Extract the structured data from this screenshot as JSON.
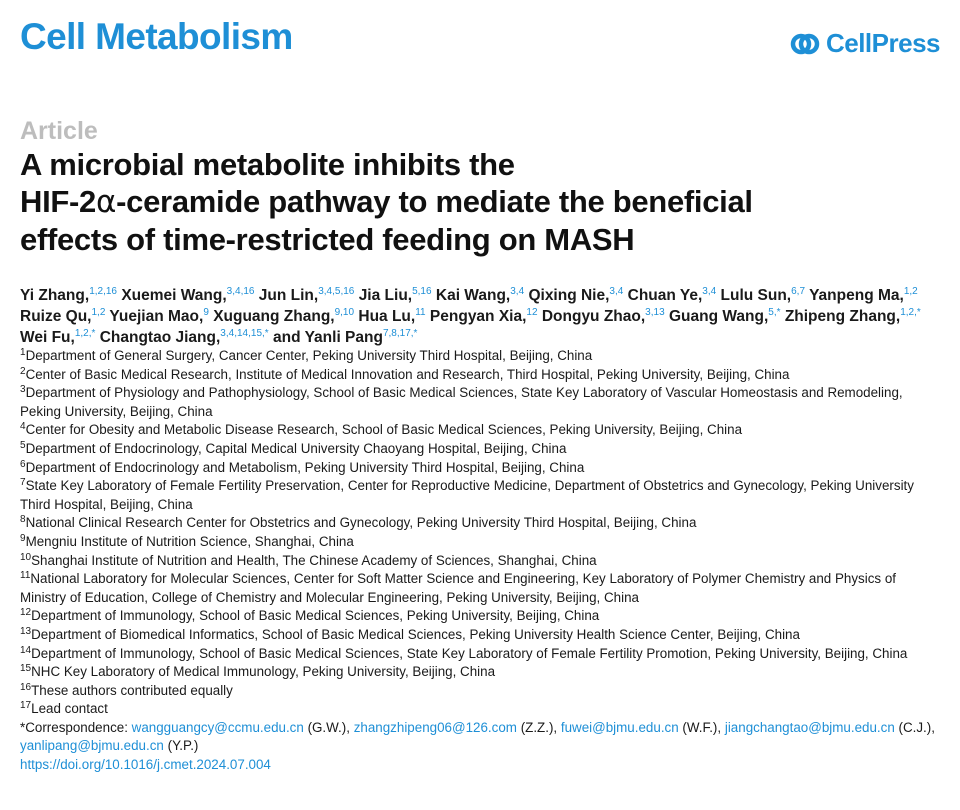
{
  "header": {
    "journal": "Cell Metabolism",
    "publisher": "CellPress",
    "brand_color": "#1e8fd6"
  },
  "article_type": "Article",
  "title": {
    "line1": "A microbial metabolite inhibits the",
    "line2_pre": "HIF-2",
    "line2_greek": "α",
    "line2_post": "-ceramide pathway to mediate the beneficial",
    "line3": "effects of time-restricted feeding on MASH"
  },
  "authors": [
    {
      "name": "Yi Zhang,",
      "sup": "1,2,16"
    },
    {
      "name": "Xuemei Wang,",
      "sup": "3,4,16"
    },
    {
      "name": "Jun Lin,",
      "sup": "3,4,5,16"
    },
    {
      "name": "Jia Liu,",
      "sup": "5,16"
    },
    {
      "name": "Kai Wang,",
      "sup": "3,4"
    },
    {
      "name": "Qixing Nie,",
      "sup": "3,4"
    },
    {
      "name": "Chuan Ye,",
      "sup": "3,4"
    },
    {
      "name": "Lulu Sun,",
      "sup": "6,7"
    },
    {
      "name": "Yanpeng Ma,",
      "sup": "1,2"
    },
    {
      "name": "Ruize Qu,",
      "sup": "1,2"
    },
    {
      "name": "Yuejian Mao,",
      "sup": "9"
    },
    {
      "name": "Xuguang Zhang,",
      "sup": "9,10"
    },
    {
      "name": "Hua Lu,",
      "sup": "11"
    },
    {
      "name": "Pengyan Xia,",
      "sup": "12"
    },
    {
      "name": "Dongyu Zhao,",
      "sup": "3,13"
    },
    {
      "name": "Guang Wang,",
      "sup": "5,*"
    },
    {
      "name": "Zhipeng Zhang,",
      "sup": "1,2,*"
    },
    {
      "name": "Wei Fu,",
      "sup": "1,2,*"
    },
    {
      "name": "Changtao Jiang,",
      "sup": "3,4,14,15,*"
    },
    {
      "name": "and Yanli Pang",
      "sup": "7,8,17,*"
    }
  ],
  "affiliations": [
    {
      "num": "1",
      "text": "Department of General Surgery, Cancer Center, Peking University Third Hospital, Beijing, China"
    },
    {
      "num": "2",
      "text": "Center of Basic Medical Research, Institute of Medical Innovation and Research, Third Hospital, Peking University, Beijing, China"
    },
    {
      "num": "3",
      "text": "Department of Physiology and Pathophysiology, School of Basic Medical Sciences, State Key Laboratory of Vascular Homeostasis and Remodeling, Peking University, Beijing, China"
    },
    {
      "num": "4",
      "text": "Center for Obesity and Metabolic Disease Research, School of Basic Medical Sciences, Peking University, Beijing, China"
    },
    {
      "num": "5",
      "text": "Department of Endocrinology, Capital Medical University Chaoyang Hospital, Beijing, China"
    },
    {
      "num": "6",
      "text": "Department of Endocrinology and Metabolism, Peking University Third Hospital, Beijing, China"
    },
    {
      "num": "7",
      "text": "State Key Laboratory of Female Fertility Preservation, Center for Reproductive Medicine, Department of Obstetrics and Gynecology, Peking University Third Hospital, Beijing, China"
    },
    {
      "num": "8",
      "text": "National Clinical Research Center for Obstetrics and Gynecology, Peking University Third Hospital, Beijing, China"
    },
    {
      "num": "9",
      "text": "Mengniu Institute of Nutrition Science, Shanghai, China"
    },
    {
      "num": "10",
      "text": "Shanghai Institute of Nutrition and Health, The Chinese Academy of Sciences, Shanghai, China"
    },
    {
      "num": "11",
      "text": "National Laboratory for Molecular Sciences, Center for Soft Matter Science and Engineering, Key Laboratory of Polymer Chemistry and Physics of Ministry of Education, College of Chemistry and Molecular Engineering, Peking University, Beijing, China"
    },
    {
      "num": "12",
      "text": "Department of Immunology, School of Basic Medical Sciences, Peking University, Beijing, China"
    },
    {
      "num": "13",
      "text": "Department of Biomedical Informatics, School of Basic Medical Sciences, Peking University Health Science Center, Beijing, China"
    },
    {
      "num": "14",
      "text": "Department of Immunology, School of Basic Medical Sciences, State Key Laboratory of Female Fertility Promotion, Peking University, Beijing, China"
    },
    {
      "num": "15",
      "text": "NHC Key Laboratory of Medical Immunology, Peking University, Beijing, China"
    },
    {
      "num": "16",
      "text": "These authors contributed equally"
    },
    {
      "num": "17",
      "text": "Lead contact"
    }
  ],
  "correspondence": {
    "label": "*Correspondence:",
    "entries": [
      {
        "email": "wangguangcy@ccmu.edu.cn",
        "who": "(G.W.),"
      },
      {
        "email": "zhangzhipeng06@126.com",
        "who": "(Z.Z.),"
      },
      {
        "email": "fuwei@bjmu.edu.cn",
        "who": "(W.F.),"
      },
      {
        "email": "jiangchangtao@bjmu.edu.cn",
        "who": "(C.J.),"
      },
      {
        "email": "yanlipang@bjmu.edu.cn",
        "who": "(Y.P.)"
      }
    ]
  },
  "doi": "https://doi.org/10.1016/j.cmet.2024.07.004"
}
